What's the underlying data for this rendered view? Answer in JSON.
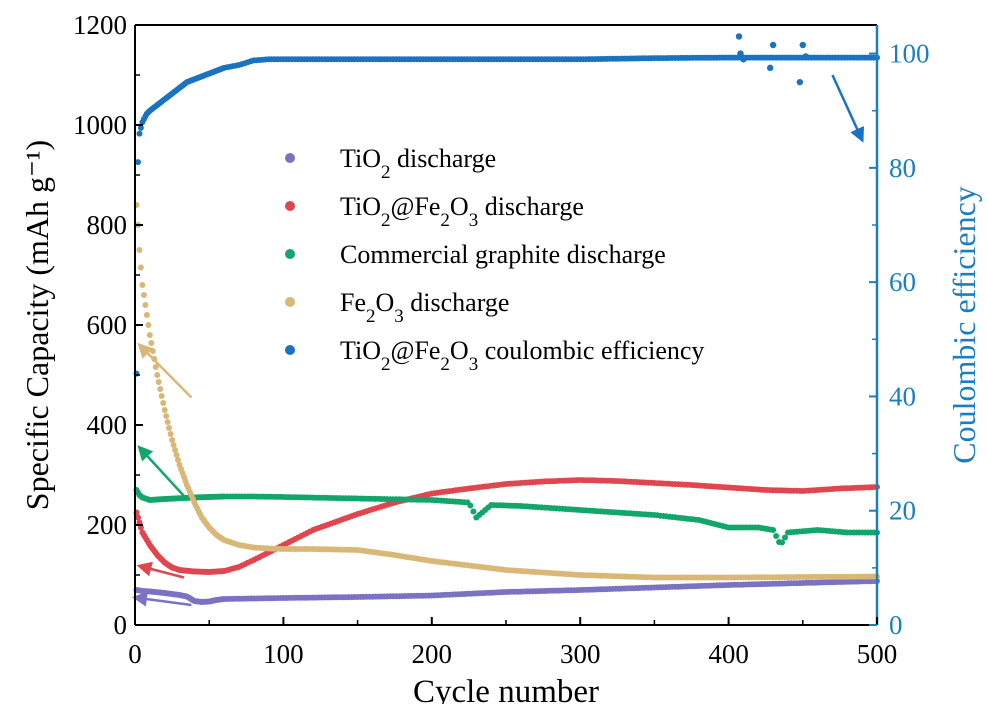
{
  "chart_data": {
    "type": "scatter",
    "xlabel": "Cycle number",
    "ylabel": "Specific Capacity (mAh g⁻¹)",
    "y2label": "Coulombic efficiency",
    "xlim": [
      0,
      500
    ],
    "ylim": [
      0,
      1200
    ],
    "y2lim": [
      0,
      105
    ],
    "xticks": [
      "0",
      "100",
      "200",
      "300",
      "400",
      "500"
    ],
    "yticks": [
      "0",
      "200",
      "400",
      "600",
      "800",
      "1000",
      "1200"
    ],
    "y2ticks": [
      "0",
      "20",
      "40",
      "60",
      "80",
      "100"
    ],
    "grid": false,
    "legend_position": "center-left",
    "colors": {
      "tio2": "#7b72c2",
      "tio2_fe2o3": "#e0464f",
      "graphite": "#12a66a",
      "fe2o3": "#d9b877",
      "ce": "#1a73c0",
      "axis_right": "#1a7fc1"
    },
    "legend": [
      {
        "key": "tio2",
        "parts": [
          [
            "TiO",
            ""
          ],
          [
            "2",
            "sub"
          ],
          [
            " discharge",
            ""
          ]
        ]
      },
      {
        "key": "tio2_fe2o3",
        "parts": [
          [
            "TiO",
            ""
          ],
          [
            "2",
            "sub"
          ],
          [
            "@Fe",
            ""
          ],
          [
            "2",
            "sub"
          ],
          [
            "O",
            ""
          ],
          [
            "3",
            "sub"
          ],
          [
            " discharge",
            ""
          ]
        ]
      },
      {
        "key": "graphite",
        "parts": [
          [
            "Commercial graphite discharge",
            ""
          ]
        ]
      },
      {
        "key": "fe2o3",
        "parts": [
          [
            "Fe",
            ""
          ],
          [
            "2",
            "sub"
          ],
          [
            "O",
            ""
          ],
          [
            "3",
            "sub"
          ],
          [
            " discharge",
            ""
          ]
        ]
      },
      {
        "key": "ce",
        "parts": [
          [
            "TiO",
            ""
          ],
          [
            "2",
            "sub"
          ],
          [
            "@Fe",
            ""
          ],
          [
            "2",
            "sub"
          ],
          [
            "O",
            ""
          ],
          [
            "3",
            "sub"
          ],
          [
            " coulombic efficiency",
            ""
          ]
        ]
      }
    ],
    "series": [
      {
        "key": "tio2",
        "axis": "left",
        "x": [
          1,
          5,
          10,
          20,
          30,
          35,
          40,
          45,
          50,
          55,
          60,
          80,
          100,
          150,
          200,
          250,
          300,
          350,
          400,
          450,
          500
        ],
        "y": [
          70,
          68,
          67,
          64,
          60,
          57,
          48,
          46,
          47,
          50,
          52,
          53,
          54,
          56,
          59,
          66,
          70,
          75,
          80,
          84,
          88
        ]
      },
      {
        "key": "tio2_fe2o3",
        "axis": "left",
        "x": [
          1,
          3,
          5,
          10,
          15,
          20,
          25,
          30,
          40,
          50,
          60,
          70,
          80,
          100,
          120,
          150,
          175,
          200,
          225,
          250,
          275,
          300,
          325,
          350,
          375,
          400,
          425,
          450,
          475,
          500
        ],
        "y": [
          225,
          205,
          185,
          160,
          140,
          125,
          115,
          110,
          107,
          106,
          108,
          116,
          130,
          160,
          190,
          222,
          245,
          263,
          273,
          282,
          287,
          290,
          288,
          284,
          280,
          275,
          270,
          268,
          273,
          276
        ]
      },
      {
        "key": "graphite",
        "axis": "left",
        "x": [
          1,
          3,
          5,
          10,
          20,
          40,
          60,
          80,
          100,
          150,
          200,
          225,
          230,
          240,
          260,
          300,
          350,
          380,
          400,
          420,
          430,
          435,
          440,
          460,
          480,
          500
        ],
        "y": [
          270,
          260,
          255,
          250,
          252,
          255,
          257,
          257,
          256,
          253,
          250,
          245,
          215,
          240,
          238,
          230,
          220,
          210,
          195,
          195,
          190,
          160,
          185,
          190,
          185,
          185
        ]
      },
      {
        "key": "fe2o3",
        "axis": "left",
        "x": [
          1,
          2,
          3,
          5,
          8,
          10,
          15,
          20,
          25,
          30,
          35,
          40,
          45,
          50,
          55,
          60,
          70,
          80,
          90,
          100,
          120,
          150,
          175,
          200,
          250,
          300,
          350,
          400,
          450,
          500
        ],
        "y": [
          840,
          800,
          750,
          680,
          620,
          580,
          500,
          430,
          370,
          320,
          280,
          245,
          215,
          195,
          180,
          170,
          160,
          155,
          153,
          152,
          152,
          150,
          140,
          128,
          110,
          100,
          95,
          95,
          96,
          97
        ]
      },
      {
        "key": "ce",
        "axis": "right",
        "x": [
          1,
          2,
          3,
          5,
          8,
          10,
          15,
          20,
          25,
          30,
          35,
          40,
          50,
          60,
          70,
          80,
          90,
          100,
          150,
          200,
          250,
          300,
          350,
          400,
          450,
          500
        ],
        "y": [
          44,
          81,
          86,
          88,
          89.5,
          90,
          91,
          92,
          93,
          94,
          95,
          95.5,
          96.5,
          97.5,
          98,
          98.8,
          99,
          99,
          99,
          99,
          99,
          99,
          99.2,
          99.3,
          99.3,
          99.3
        ]
      }
    ],
    "ce_outliers": {
      "x": [
        407,
        408,
        410,
        428,
        430,
        448,
        450,
        452
      ],
      "y": [
        103,
        100,
        99,
        97.5,
        101.5,
        95,
        101.5,
        99.5
      ]
    },
    "arrows": [
      {
        "key": "tio2",
        "from": [
          38,
          40
        ],
        "to": [
          0,
          55
        ]
      },
      {
        "key": "tio2_fe2o3",
        "from": [
          33,
          95
        ],
        "to": [
          3,
          118
        ]
      },
      {
        "key": "graphite",
        "from": [
          33,
          258
        ],
        "to": [
          3,
          355
        ]
      },
      {
        "key": "fe2o3",
        "from": [
          38,
          455
        ],
        "to": [
          3,
          560
        ]
      },
      {
        "key": "ce",
        "from": [
          470,
          1100
        ],
        "to": [
          490,
          970
        ]
      }
    ]
  }
}
